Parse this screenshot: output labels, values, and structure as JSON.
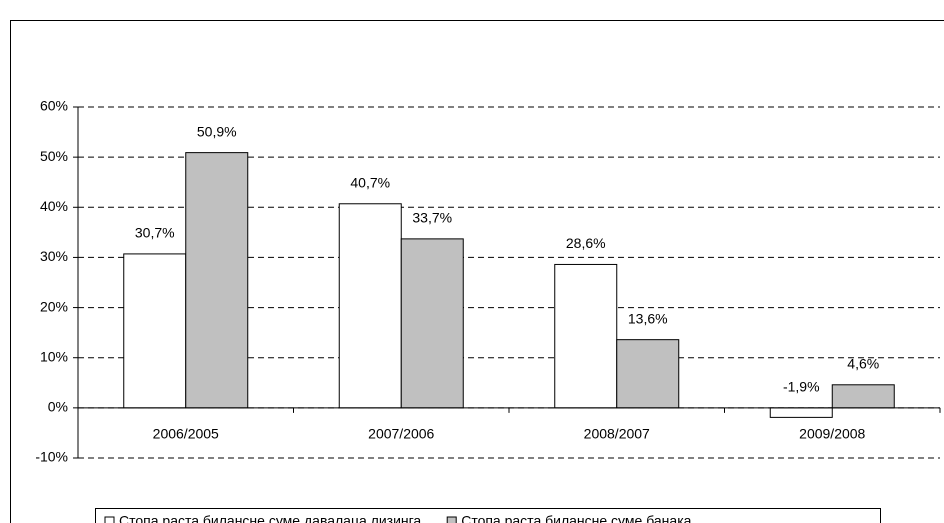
{
  "chart_data": {
    "type": "bar",
    "categories": [
      "2006/2005",
      "2007/2006",
      "2008/2007",
      "2009/2008"
    ],
    "series": [
      {
        "name": "Стопа раста билансне суме давалаца лизинга",
        "color": "#ffffff",
        "values": [
          30.7,
          40.7,
          28.6,
          -1.9
        ],
        "value_labels": [
          "30,7%",
          "40,7%",
          "28,6%",
          "-1,9%"
        ]
      },
      {
        "name": "Стопа раста билансне суме банака",
        "color": "#c0c0c0",
        "values": [
          50.9,
          33.7,
          13.6,
          4.6
        ],
        "value_labels": [
          "50,9%",
          "33,7%",
          "13,6%",
          "4,6%"
        ]
      }
    ],
    "ylim": [
      -10,
      60
    ],
    "yticks": [
      {
        "value": -10,
        "label": "-10%"
      },
      {
        "value": 0,
        "label": "0%"
      },
      {
        "value": 10,
        "label": "10%"
      },
      {
        "value": 20,
        "label": "20%"
      },
      {
        "value": 30,
        "label": "30%"
      },
      {
        "value": 40,
        "label": "40%"
      },
      {
        "value": 50,
        "label": "50%"
      },
      {
        "value": 60,
        "label": "60%"
      }
    ],
    "grid": true,
    "legend": "bottom"
  }
}
